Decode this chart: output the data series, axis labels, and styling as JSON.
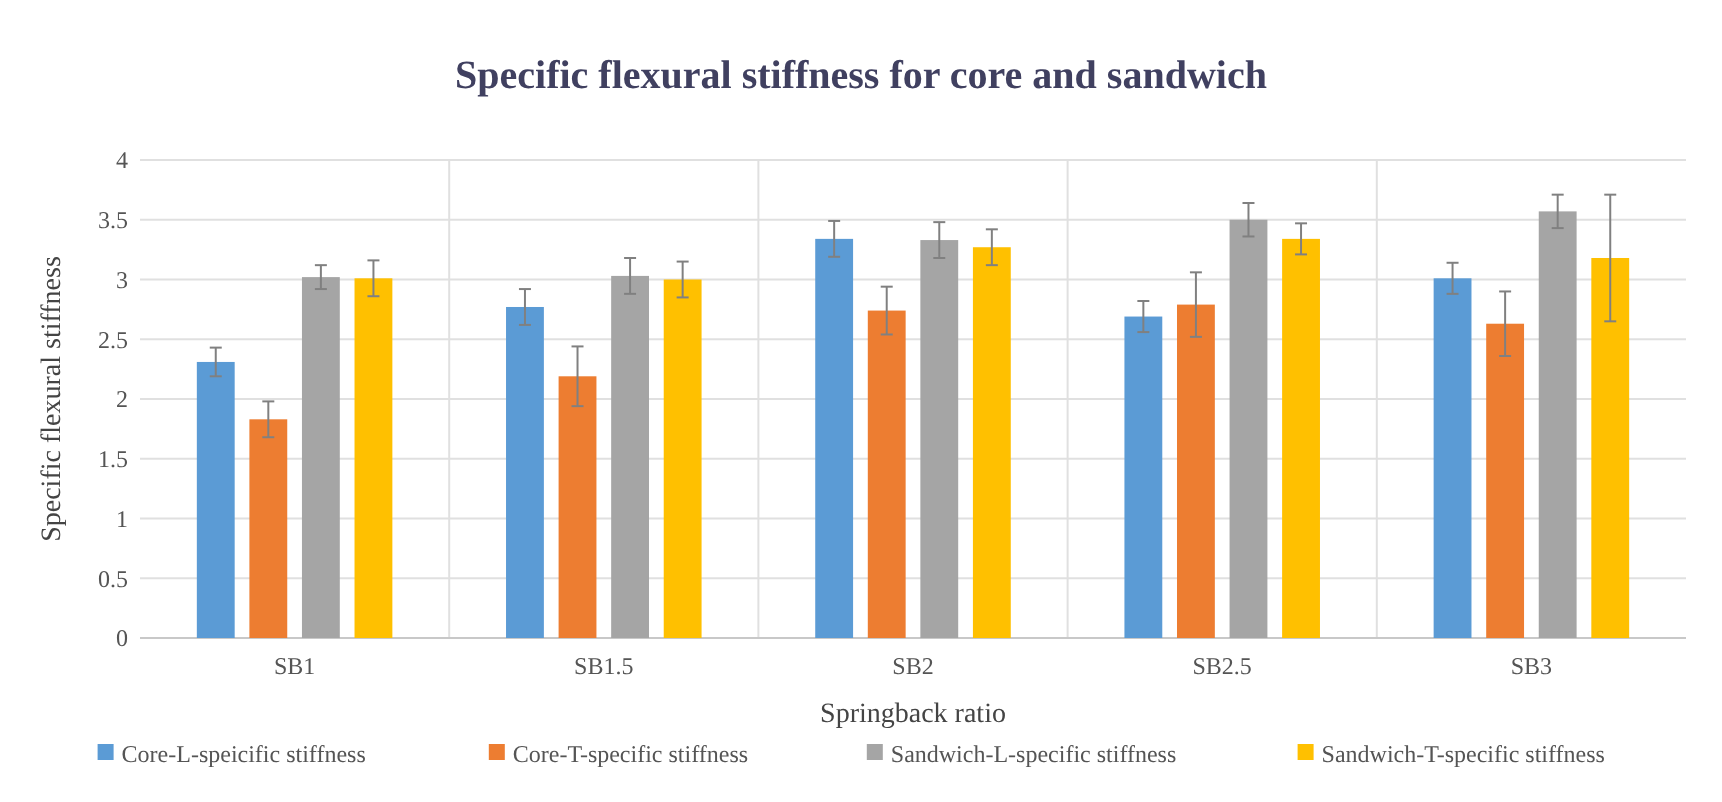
{
  "chart_data": {
    "type": "bar",
    "title": "Specific flexural stiffness for core and sandwich",
    "xlabel": "Springback ratio",
    "ylabel": "Specific flexural stiffness",
    "categories": [
      "SB1",
      "SB1.5",
      "SB2",
      "SB2.5",
      "SB3"
    ],
    "series": [
      {
        "name": "Core-L-speicific stiffness",
        "color": "#5b9bd5",
        "values": [
          2.31,
          2.77,
          3.34,
          2.69,
          3.01
        ],
        "errors": [
          0.12,
          0.15,
          0.15,
          0.13,
          0.13
        ]
      },
      {
        "name": "Core-T-specific stiffness",
        "color": "#ed7d31",
        "values": [
          1.83,
          2.19,
          2.74,
          2.79,
          2.63
        ],
        "errors": [
          0.15,
          0.25,
          0.2,
          0.27,
          0.27
        ]
      },
      {
        "name": "Sandwich-L-specific stiffness",
        "color": "#a5a5a5",
        "values": [
          3.02,
          3.03,
          3.33,
          3.5,
          3.57
        ],
        "errors": [
          0.1,
          0.15,
          0.15,
          0.14,
          0.14
        ]
      },
      {
        "name": "Sandwich-T-specific stiffness",
        "color": "#ffc000",
        "values": [
          3.01,
          3.0,
          3.27,
          3.34,
          3.18
        ],
        "errors": [
          0.15,
          0.15,
          0.15,
          0.13,
          0.53
        ]
      }
    ],
    "ylim": [
      0,
      4
    ],
    "yticks": [
      0,
      0.5,
      1,
      1.5,
      2,
      2.5,
      3,
      3.5,
      4
    ],
    "grid": true,
    "legend": "bottom"
  }
}
